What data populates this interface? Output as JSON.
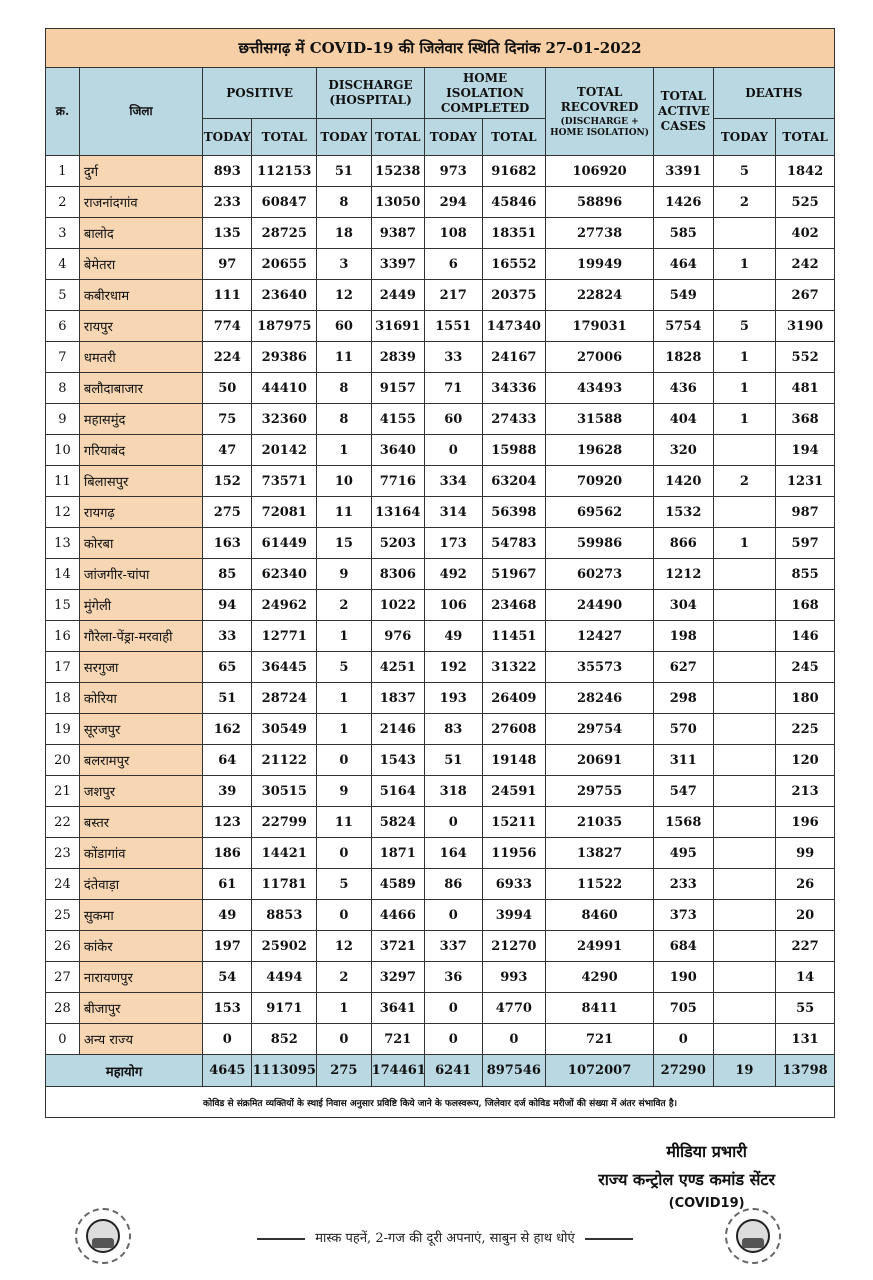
{
  "title": "छत्तीसगढ़ में COVID-19 की जिलेवार स्थिति दिनांक 27-01-2022",
  "headers": {
    "sno": "क्र.",
    "district": "जिला",
    "positive": "POSITIVE",
    "discharge": "DISCHARGE (HOSPITAL)",
    "home_isolation": "HOME ISOLATION COMPLETED",
    "total_recovered": "TOTAL RECOVRED",
    "total_recovered_sub": "(DISCHARGE + HOME ISOLATION)",
    "total_active": "TOTAL ACTIVE CASES",
    "deaths": "DEATHS",
    "today": "TODAY",
    "total": "TOTAL"
  },
  "rows": [
    [
      "1",
      "दुर्ग",
      "893",
      "112153",
      "51",
      "15238",
      "973",
      "91682",
      "106920",
      "3391",
      "5",
      "1842"
    ],
    [
      "2",
      "राजनांदगांव",
      "233",
      "60847",
      "8",
      "13050",
      "294",
      "45846",
      "58896",
      "1426",
      "2",
      "525"
    ],
    [
      "3",
      "बालोद",
      "135",
      "28725",
      "18",
      "9387",
      "108",
      "18351",
      "27738",
      "585",
      "",
      "402"
    ],
    [
      "4",
      "बेमेतरा",
      "97",
      "20655",
      "3",
      "3397",
      "6",
      "16552",
      "19949",
      "464",
      "1",
      "242"
    ],
    [
      "5",
      "कबीरधाम",
      "111",
      "23640",
      "12",
      "2449",
      "217",
      "20375",
      "22824",
      "549",
      "",
      "267"
    ],
    [
      "6",
      "रायपुर",
      "774",
      "187975",
      "60",
      "31691",
      "1551",
      "147340",
      "179031",
      "5754",
      "5",
      "3190"
    ],
    [
      "7",
      "धमतरी",
      "224",
      "29386",
      "11",
      "2839",
      "33",
      "24167",
      "27006",
      "1828",
      "1",
      "552"
    ],
    [
      "8",
      "बलौदाबाजार",
      "50",
      "44410",
      "8",
      "9157",
      "71",
      "34336",
      "43493",
      "436",
      "1",
      "481"
    ],
    [
      "9",
      "महासमुंद",
      "75",
      "32360",
      "8",
      "4155",
      "60",
      "27433",
      "31588",
      "404",
      "1",
      "368"
    ],
    [
      "10",
      "गरियाबंद",
      "47",
      "20142",
      "1",
      "3640",
      "0",
      "15988",
      "19628",
      "320",
      "",
      "194"
    ],
    [
      "11",
      "बिलासपुर",
      "152",
      "73571",
      "10",
      "7716",
      "334",
      "63204",
      "70920",
      "1420",
      "2",
      "1231"
    ],
    [
      "12",
      "रायगढ़",
      "275",
      "72081",
      "11",
      "13164",
      "314",
      "56398",
      "69562",
      "1532",
      "",
      "987"
    ],
    [
      "13",
      "कोरबा",
      "163",
      "61449",
      "15",
      "5203",
      "173",
      "54783",
      "59986",
      "866",
      "1",
      "597"
    ],
    [
      "14",
      "जांजगीर-चांपा",
      "85",
      "62340",
      "9",
      "8306",
      "492",
      "51967",
      "60273",
      "1212",
      "",
      "855"
    ],
    [
      "15",
      "मुंगेली",
      "94",
      "24962",
      "2",
      "1022",
      "106",
      "23468",
      "24490",
      "304",
      "",
      "168"
    ],
    [
      "16",
      "गौरेला-पेंड्रा-मरवाही",
      "33",
      "12771",
      "1",
      "976",
      "49",
      "11451",
      "12427",
      "198",
      "",
      "146"
    ],
    [
      "17",
      "सरगुजा",
      "65",
      "36445",
      "5",
      "4251",
      "192",
      "31322",
      "35573",
      "627",
      "",
      "245"
    ],
    [
      "18",
      "कोरिया",
      "51",
      "28724",
      "1",
      "1837",
      "193",
      "26409",
      "28246",
      "298",
      "",
      "180"
    ],
    [
      "19",
      "सूरजपुर",
      "162",
      "30549",
      "1",
      "2146",
      "83",
      "27608",
      "29754",
      "570",
      "",
      "225"
    ],
    [
      "20",
      "बलरामपुर",
      "64",
      "21122",
      "0",
      "1543",
      "51",
      "19148",
      "20691",
      "311",
      "",
      "120"
    ],
    [
      "21",
      "जशपुर",
      "39",
      "30515",
      "9",
      "5164",
      "318",
      "24591",
      "29755",
      "547",
      "",
      "213"
    ],
    [
      "22",
      "बस्तर",
      "123",
      "22799",
      "11",
      "5824",
      "0",
      "15211",
      "21035",
      "1568",
      "",
      "196"
    ],
    [
      "23",
      "कोंडागांव",
      "186",
      "14421",
      "0",
      "1871",
      "164",
      "11956",
      "13827",
      "495",
      "",
      "99"
    ],
    [
      "24",
      "दंतेवाड़ा",
      "61",
      "11781",
      "5",
      "4589",
      "86",
      "6933",
      "11522",
      "233",
      "",
      "26"
    ],
    [
      "25",
      "सुकमा",
      "49",
      "8853",
      "0",
      "4466",
      "0",
      "3994",
      "8460",
      "373",
      "",
      "20"
    ],
    [
      "26",
      "कांकेर",
      "197",
      "25902",
      "12",
      "3721",
      "337",
      "21270",
      "24991",
      "684",
      "",
      "227"
    ],
    [
      "27",
      "नारायणपुर",
      "54",
      "4494",
      "2",
      "3297",
      "36",
      "993",
      "4290",
      "190",
      "",
      "14"
    ],
    [
      "28",
      "बीजापुर",
      "153",
      "9171",
      "1",
      "3641",
      "0",
      "4770",
      "8411",
      "705",
      "",
      "55"
    ],
    [
      "0",
      "अन्य राज्य",
      "0",
      "852",
      "0",
      "721",
      "0",
      "0",
      "721",
      "0",
      "",
      "131"
    ]
  ],
  "total_row": {
    "label": "महायोग",
    "values": [
      "4645",
      "1113095",
      "275",
      "174461",
      "6241",
      "897546",
      "1072007",
      "27290",
      "19",
      "13798"
    ]
  },
  "note": "कोविड से संक्रमित व्यक्तियों के स्थाई निवास अनुसार प्रविष्टि किये जाने के फलस्वरूप, जिलेवार दर्ज कोविड मरीजों की संख्या में अंतर संभावित है।",
  "signature": {
    "line1": "मीडिया प्रभारी",
    "line2": "राज्य कन्ट्रोल एण्ड कमांड सेंटर",
    "line3": "(COVID19)"
  },
  "slogan": "मास्क पहनें, 2-गज की दूरी अपनाएं, साबुन से हाथ धोएं",
  "colors": {
    "title_bg": "#f6cfa6",
    "header_bg": "#b9d8e2",
    "district_bg": "#f6d6b3"
  }
}
